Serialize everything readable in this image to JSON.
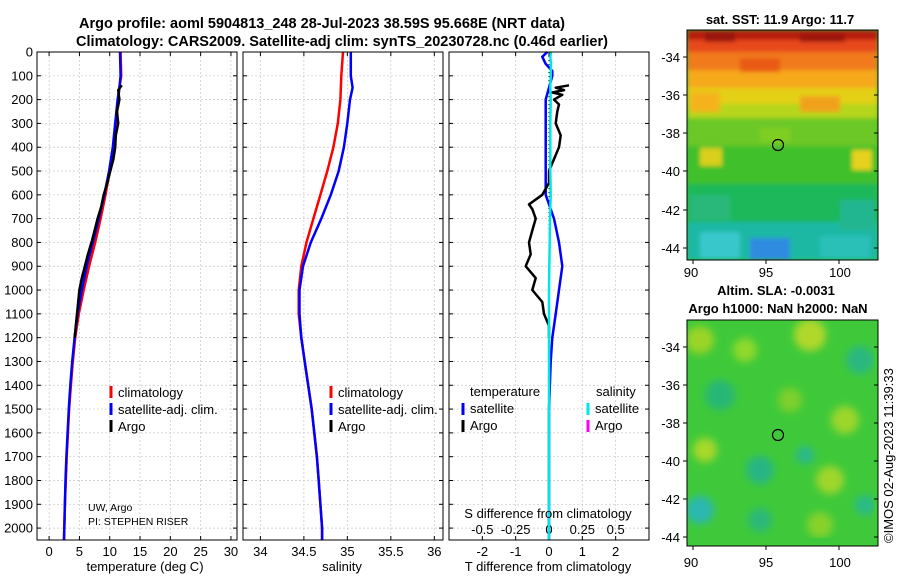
{
  "header": {
    "title_line1": "Argo profile: aoml 5904813_248 28-Jul-2023 38.59S 95.668E (NRT data)",
    "title_line2": "Climatology: CARS2009. Satellite-adj clim: synTS_20230728.nc (0.46d earlier)"
  },
  "colors": {
    "climatology": "#ff0000",
    "satellite_adj": "#0000ff",
    "argo": "#000000",
    "satellite_salinity": "#00e5e5",
    "argo_salinity": "#ff00ff"
  },
  "chart_data": [
    {
      "id": "temperature",
      "type": "line",
      "xlabel": "temperature (deg C)",
      "xlim": [
        -2,
        31
      ],
      "ylim": [
        0,
        2050
      ],
      "xticks": [
        0,
        5,
        10,
        15,
        20,
        25,
        30
      ],
      "yticks": [
        0,
        100,
        200,
        300,
        400,
        500,
        600,
        700,
        800,
        900,
        1000,
        1100,
        1200,
        1300,
        1400,
        1500,
        1600,
        1700,
        1800,
        1900,
        2000
      ],
      "legend": [
        {
          "label": "climatology",
          "color": "#ff0000"
        },
        {
          "label": "satellite-adj. clim.",
          "color": "#0000ff"
        },
        {
          "label": "Argo",
          "color": "#000000"
        }
      ],
      "annotation_line1": "UW, Argo",
      "annotation_line2": "PI: STEPHEN RISER",
      "series": [
        {
          "name": "climatology",
          "color": "#ff0000",
          "width": 2.5,
          "depth": [
            0,
            100,
            150,
            200,
            300,
            400,
            500,
            600,
            700,
            800,
            900,
            1000,
            1100,
            1200,
            1300,
            1400,
            1500,
            1600,
            1700,
            1800,
            1900,
            2000,
            2050
          ],
          "values": [
            11.8,
            11.9,
            11.6,
            11.4,
            11.0,
            10.6,
            10.0,
            9.3,
            8.5,
            7.6,
            6.6,
            5.7,
            4.9,
            4.3,
            3.9,
            3.6,
            3.3,
            3.1,
            2.9,
            2.75,
            2.6,
            2.5,
            2.45
          ]
        },
        {
          "name": "satellite-adj. clim.",
          "color": "#0000ff",
          "width": 2.5,
          "depth": [
            0,
            100,
            150,
            200,
            300,
            400,
            500,
            600,
            700,
            800,
            900,
            1000,
            1100,
            1200,
            1300,
            1400,
            1500,
            1600,
            1700,
            1800,
            1900,
            2000,
            2050
          ],
          "values": [
            11.7,
            11.8,
            11.6,
            11.3,
            10.9,
            10.5,
            9.9,
            9.1,
            8.2,
            7.2,
            6.2,
            5.4,
            4.7,
            4.2,
            3.8,
            3.5,
            3.25,
            3.05,
            2.85,
            2.7,
            2.6,
            2.5,
            2.45
          ]
        },
        {
          "name": "Argo",
          "color": "#000000",
          "width": 2.5,
          "depth": [
            140,
            160,
            200,
            250,
            300,
            350,
            400,
            450,
            500,
            550,
            600,
            650,
            700,
            750,
            800,
            850,
            900,
            950,
            1000,
            1050,
            1100,
            1150,
            1200
          ],
          "values": [
            12.0,
            11.4,
            11.6,
            11.2,
            11.4,
            11.0,
            10.9,
            10.6,
            10.1,
            9.6,
            9.0,
            8.6,
            8.0,
            7.5,
            7.0,
            6.4,
            5.9,
            5.4,
            5.0,
            4.8,
            4.6,
            4.4,
            4.2
          ]
        }
      ]
    },
    {
      "id": "salinity",
      "type": "line",
      "xlabel": "salinity",
      "xlim": [
        33.8,
        36.1
      ],
      "ylim": [
        0,
        2050
      ],
      "xticks": [
        34,
        34.5,
        35,
        35.5,
        36
      ],
      "xticklabels": [
        "34",
        "34.5",
        "35",
        "35.5",
        "36"
      ],
      "legend": [
        {
          "label": "climatology",
          "color": "#ff0000"
        },
        {
          "label": "satellite-adj. clim.",
          "color": "#0000ff"
        },
        {
          "label": "Argo",
          "color": "#000000"
        }
      ],
      "series": [
        {
          "name": "climatology",
          "color": "#ff0000",
          "width": 2.5,
          "depth": [
            0,
            100,
            200,
            300,
            400,
            500,
            600,
            700,
            800,
            900,
            1000,
            1100,
            1200,
            1300,
            1400,
            1500,
            1600,
            1700,
            1800,
            1900,
            2000,
            2050
          ],
          "values": [
            34.95,
            34.93,
            34.92,
            34.89,
            34.84,
            34.77,
            34.69,
            34.61,
            34.53,
            34.47,
            34.44,
            34.44,
            34.47,
            34.51,
            34.55,
            34.59,
            34.62,
            34.65,
            34.67,
            34.69,
            34.71,
            34.71
          ]
        },
        {
          "name": "satellite-adj. clim.",
          "color": "#0000ff",
          "width": 2.5,
          "depth": [
            0,
            100,
            150,
            200,
            300,
            400,
            500,
            600,
            700,
            800,
            900,
            1000,
            1100,
            1200,
            1300,
            1400,
            1500,
            1600,
            1700,
            1800,
            1900,
            2000,
            2050
          ],
          "values": [
            35.04,
            35.04,
            35.06,
            35.03,
            35.0,
            34.96,
            34.9,
            34.81,
            34.7,
            34.58,
            34.49,
            34.45,
            34.45,
            34.47,
            34.51,
            34.55,
            34.59,
            34.62,
            34.65,
            34.67,
            34.69,
            34.71,
            34.71
          ]
        }
      ]
    },
    {
      "id": "difference",
      "type": "line",
      "xlabel": "T difference from climatology",
      "top_xlabel": "S difference from climatology",
      "xlim": [
        -3,
        3
      ],
      "ylim": [
        0,
        2050
      ],
      "xticks": [
        -2,
        -1,
        0,
        1,
        2
      ],
      "top_xticks": [
        -0.5,
        -0.25,
        0,
        0.25,
        0.5
      ],
      "top_xticklabels": [
        "-0.5",
        "-0.25",
        "0",
        "0.25",
        "0.5"
      ],
      "legend_temperature_title": "temperature",
      "legend_salinity_title": "salinity",
      "legend": [
        {
          "label": "satellite",
          "color": "#0000ff"
        },
        {
          "label": "Argo",
          "color": "#000000"
        },
        {
          "label": "satellite",
          "color": "#00e5e5"
        },
        {
          "label": "Argo",
          "color": "#ff00ff"
        }
      ],
      "series": [
        {
          "name": "satellite temperature",
          "color": "#0000ff",
          "width": 2.5,
          "depth": [
            0,
            20,
            50,
            80,
            100,
            150,
            200,
            300,
            400,
            500,
            600,
            700,
            800,
            900,
            1000,
            1100,
            1200,
            1300,
            1500,
            1700,
            2000,
            2050
          ],
          "values": [
            -0.05,
            -0.2,
            -0.1,
            0.1,
            0.1,
            0.0,
            -0.1,
            -0.1,
            -0.1,
            -0.1,
            -0.1,
            0.15,
            0.3,
            0.4,
            0.3,
            0.2,
            0.1,
            0.05,
            0.0,
            0.0,
            0.0,
            0.0
          ]
        },
        {
          "name": "Argo temperature",
          "color": "#000000",
          "width": 2.5,
          "depth": [
            140,
            150,
            160,
            170,
            180,
            200,
            220,
            250,
            300,
            350,
            400,
            450,
            500,
            550,
            600,
            640,
            660,
            700,
            750,
            800,
            850,
            900,
            950,
            1000,
            1050,
            1100,
            1150,
            1200
          ],
          "values": [
            0.6,
            0.2,
            0.45,
            0.1,
            0.4,
            0.15,
            0.3,
            0.25,
            0.2,
            0.35,
            0.3,
            0.15,
            0.0,
            0.0,
            -0.2,
            -0.6,
            -0.5,
            -0.4,
            -0.5,
            -0.6,
            -0.55,
            -0.7,
            -0.4,
            -0.5,
            -0.2,
            -0.15,
            0.0,
            0.0
          ]
        },
        {
          "name": "satellite salinity",
          "color": "#00e5e5",
          "width": 2.5,
          "depth": [
            0,
            20,
            50,
            100,
            150,
            200,
            300,
            400,
            500,
            600,
            700,
            800,
            900,
            1000,
            1100,
            1200,
            1500,
            2000,
            2050
          ],
          "values": [
            0.06,
            0.04,
            0.06,
            0.05,
            0.04,
            0.05,
            0.04,
            0.04,
            0.04,
            0.05,
            0.03,
            0.02,
            0.01,
            0.0,
            0.0,
            0.0,
            0.0,
            0.0,
            0.0
          ]
        }
      ]
    }
  ],
  "maps": {
    "sst": {
      "title": "sat. SST: 11.9 Argo: 11.7",
      "yticks": [
        "-34",
        "-36",
        "-38",
        "-40",
        "-42",
        "-44"
      ],
      "xticks": [
        "90",
        "95",
        "100"
      ]
    },
    "sla": {
      "title_line1": "Altim. SLA: -0.0031",
      "title_line2": "Argo h1000: NaN h2000: NaN",
      "yticks": [
        "-34",
        "-36",
        "-38",
        "-40",
        "-42",
        "-44"
      ],
      "xticks": [
        "90",
        "95",
        "100"
      ]
    }
  },
  "footer": {
    "timestamp": "©IMOS 02-Aug-2023 11:39:33"
  }
}
